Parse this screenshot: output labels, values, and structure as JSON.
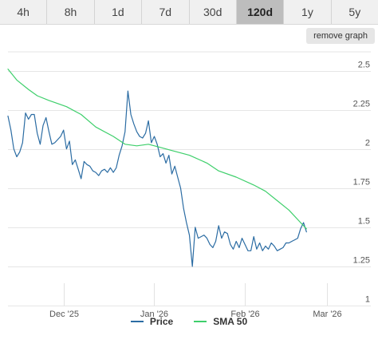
{
  "tabs": [
    {
      "label": "4h",
      "active": false
    },
    {
      "label": "8h",
      "active": false
    },
    {
      "label": "1d",
      "active": false
    },
    {
      "label": "7d",
      "active": false
    },
    {
      "label": "30d",
      "active": false
    },
    {
      "label": "120d",
      "active": true
    },
    {
      "label": "1y",
      "active": false
    },
    {
      "label": "5y",
      "active": false
    }
  ],
  "remove_graph_label": "remove graph",
  "legend": [
    {
      "name": "Price",
      "color": "#2b6ca3"
    },
    {
      "name": "SMA 50",
      "color": "#3ecf6b"
    }
  ],
  "chart_data": {
    "type": "line",
    "x_tick_labels": [
      "Dec '25",
      "Jan '26",
      "Feb '26",
      "Mar '26"
    ],
    "x_tick_days": [
      19,
      50,
      81,
      109
    ],
    "x_range_days": [
      0,
      124
    ],
    "y_ticks": [
      1,
      1.25,
      1.5,
      1.75,
      2,
      2.25,
      2.5
    ],
    "ylim": [
      1,
      2.62
    ],
    "grid": true,
    "legend_position": "bottom",
    "series": [
      {
        "name": "Price",
        "color": "#2b6ca3",
        "points": [
          [
            0,
            2.21
          ],
          [
            1,
            2.12
          ],
          [
            2,
            2.0
          ],
          [
            3,
            1.95
          ],
          [
            4,
            1.98
          ],
          [
            5,
            2.04
          ],
          [
            6,
            2.23
          ],
          [
            7,
            2.19
          ],
          [
            8,
            2.22
          ],
          [
            9,
            2.22
          ],
          [
            10,
            2.1
          ],
          [
            11,
            2.03
          ],
          [
            12,
            2.15
          ],
          [
            13,
            2.2
          ],
          [
            14,
            2.11
          ],
          [
            15,
            2.03
          ],
          [
            16,
            2.04
          ],
          [
            17,
            2.06
          ],
          [
            18,
            2.08
          ],
          [
            19,
            2.12
          ],
          [
            20,
            2.0
          ],
          [
            21,
            2.05
          ],
          [
            22,
            1.9
          ],
          [
            23,
            1.93
          ],
          [
            24,
            1.87
          ],
          [
            25,
            1.81
          ],
          [
            26,
            1.92
          ],
          [
            27,
            1.9
          ],
          [
            28,
            1.89
          ],
          [
            29,
            1.86
          ],
          [
            30,
            1.85
          ],
          [
            31,
            1.83
          ],
          [
            32,
            1.86
          ],
          [
            33,
            1.87
          ],
          [
            34,
            1.85
          ],
          [
            35,
            1.88
          ],
          [
            36,
            1.85
          ],
          [
            37,
            1.88
          ],
          [
            38,
            1.96
          ],
          [
            39,
            2.02
          ],
          [
            40,
            2.11
          ],
          [
            41,
            2.37
          ],
          [
            42,
            2.22
          ],
          [
            43,
            2.16
          ],
          [
            44,
            2.11
          ],
          [
            45,
            2.08
          ],
          [
            46,
            2.07
          ],
          [
            47,
            2.1
          ],
          [
            48,
            2.18
          ],
          [
            49,
            2.04
          ],
          [
            50,
            2.08
          ],
          [
            51,
            2.03
          ],
          [
            52,
            1.95
          ],
          [
            53,
            1.97
          ],
          [
            54,
            1.91
          ],
          [
            55,
            1.96
          ],
          [
            56,
            1.84
          ],
          [
            57,
            1.89
          ],
          [
            58,
            1.82
          ],
          [
            59,
            1.75
          ],
          [
            60,
            1.62
          ],
          [
            61,
            1.53
          ],
          [
            62,
            1.45
          ],
          [
            63,
            1.25
          ],
          [
            64,
            1.5
          ],
          [
            65,
            1.43
          ],
          [
            66,
            1.44
          ],
          [
            67,
            1.45
          ],
          [
            68,
            1.43
          ],
          [
            69,
            1.39
          ],
          [
            70,
            1.37
          ],
          [
            71,
            1.41
          ],
          [
            72,
            1.51
          ],
          [
            73,
            1.43
          ],
          [
            74,
            1.47
          ],
          [
            75,
            1.46
          ],
          [
            76,
            1.39
          ],
          [
            77,
            1.36
          ],
          [
            78,
            1.41
          ],
          [
            79,
            1.37
          ],
          [
            80,
            1.43
          ],
          [
            81,
            1.39
          ],
          [
            82,
            1.35
          ],
          [
            83,
            1.35
          ],
          [
            84,
            1.44
          ],
          [
            85,
            1.36
          ],
          [
            86,
            1.4
          ],
          [
            87,
            1.35
          ],
          [
            88,
            1.38
          ],
          [
            89,
            1.36
          ],
          [
            90,
            1.4
          ],
          [
            91,
            1.38
          ],
          [
            92,
            1.35
          ],
          [
            93,
            1.36
          ],
          [
            94,
            1.37
          ],
          [
            95,
            1.4
          ],
          [
            96,
            1.4
          ],
          [
            97,
            1.41
          ],
          [
            98,
            1.42
          ],
          [
            99,
            1.43
          ],
          [
            100,
            1.49
          ],
          [
            101,
            1.53
          ],
          [
            102,
            1.47
          ]
        ]
      },
      {
        "name": "SMA 50",
        "color": "#3ecf6b",
        "points": [
          [
            0,
            2.51
          ],
          [
            3,
            2.44
          ],
          [
            7,
            2.38
          ],
          [
            10,
            2.34
          ],
          [
            14,
            2.31
          ],
          [
            20,
            2.27
          ],
          [
            25,
            2.22
          ],
          [
            30,
            2.14
          ],
          [
            36,
            2.08
          ],
          [
            40,
            2.03
          ],
          [
            44,
            2.02
          ],
          [
            48,
            2.03
          ],
          [
            52,
            2.01
          ],
          [
            56,
            1.99
          ],
          [
            62,
            1.96
          ],
          [
            68,
            1.91
          ],
          [
            72,
            1.86
          ],
          [
            78,
            1.82
          ],
          [
            84,
            1.77
          ],
          [
            88,
            1.73
          ],
          [
            92,
            1.67
          ],
          [
            96,
            1.61
          ],
          [
            100,
            1.53
          ],
          [
            102,
            1.49
          ]
        ]
      }
    ]
  }
}
